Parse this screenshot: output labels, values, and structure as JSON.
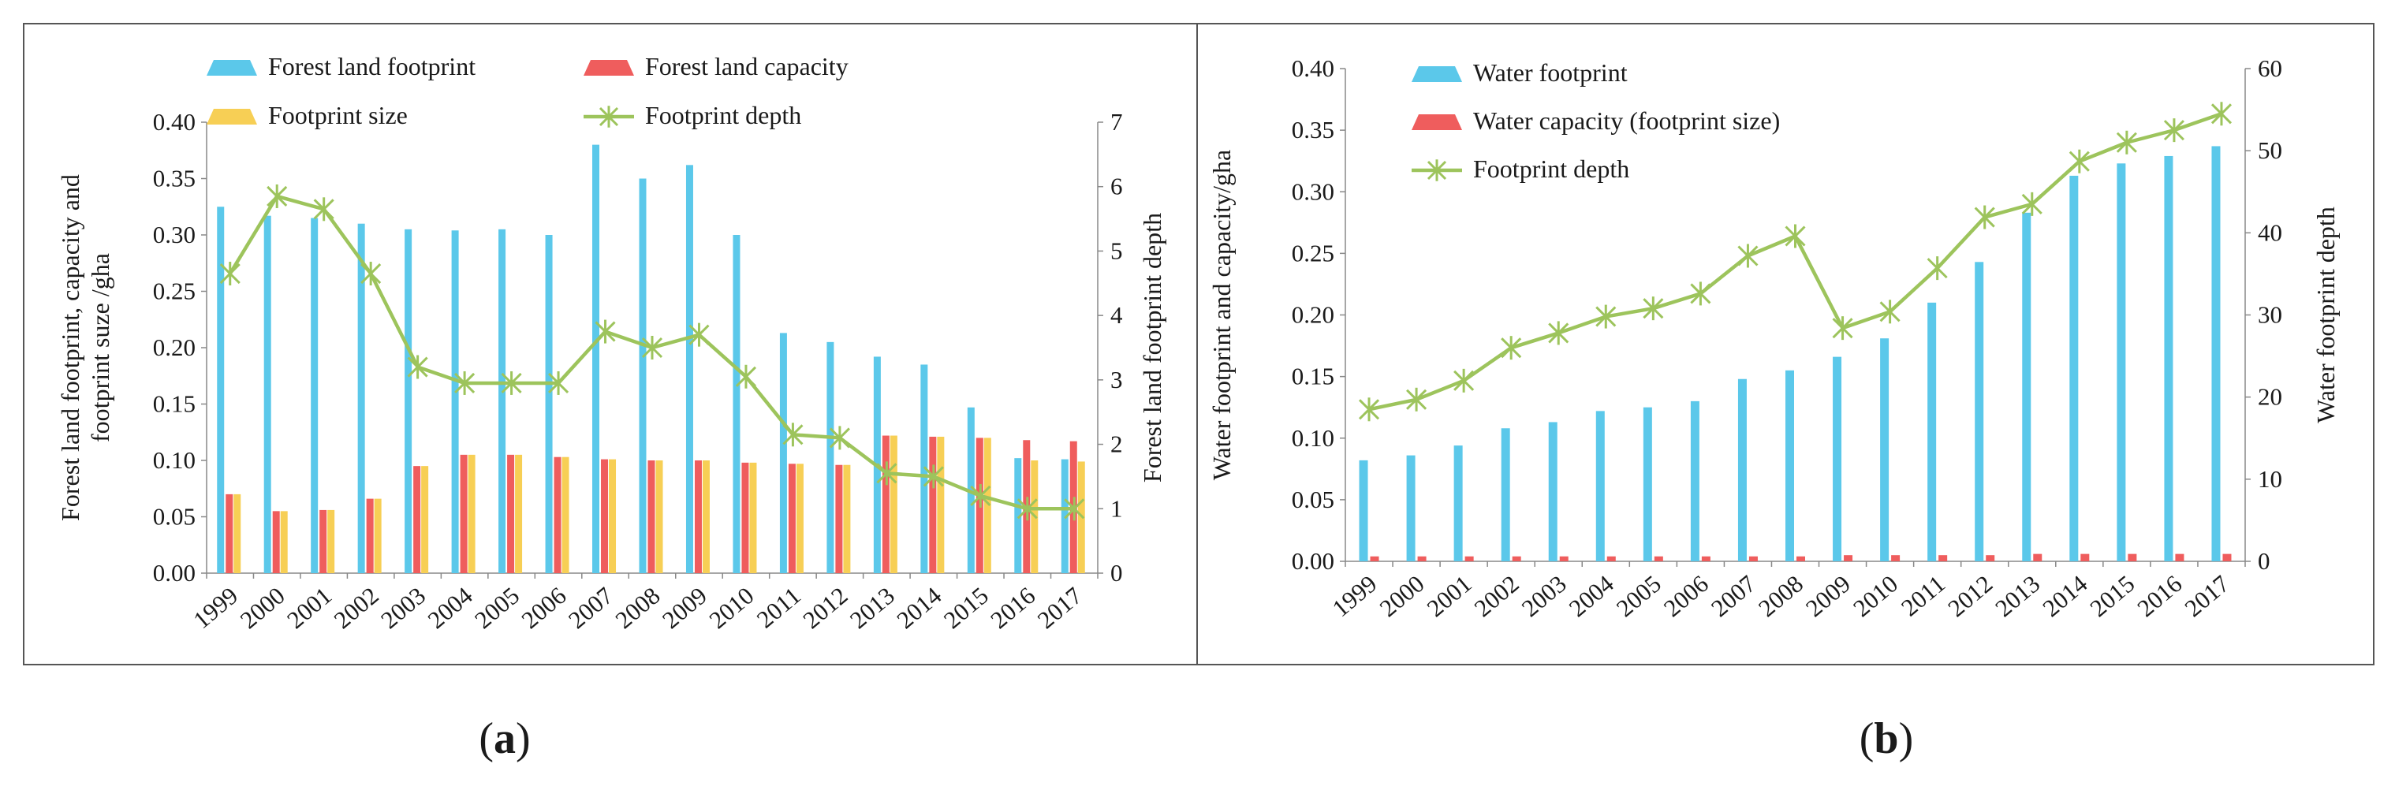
{
  "chart_data": [
    {
      "id": "a",
      "type": "bar",
      "panel_label": {
        "open": "(",
        "letter": "a",
        "close": ")"
      },
      "categories": [
        "1999",
        "2000",
        "2001",
        "2002",
        "2003",
        "2004",
        "2005",
        "2006",
        "2007",
        "2008",
        "2009",
        "2010",
        "2011",
        "2012",
        "2013",
        "2014",
        "2015",
        "2016",
        "2017"
      ],
      "series": [
        {
          "name": "Forest land footprint",
          "kind": "bar",
          "axis": "left",
          "color": "#5bc8ea",
          "values": [
            0.325,
            0.317,
            0.315,
            0.31,
            0.305,
            0.304,
            0.305,
            0.3,
            0.38,
            0.35,
            0.362,
            0.3,
            0.213,
            0.205,
            0.192,
            0.185,
            0.147,
            0.102,
            0.101
          ]
        },
        {
          "name": "Forest land capacity",
          "kind": "bar",
          "axis": "left",
          "color": "#ef5d5d",
          "values": [
            0.07,
            0.055,
            0.056,
            0.066,
            0.095,
            0.105,
            0.105,
            0.103,
            0.101,
            0.1,
            0.1,
            0.098,
            0.097,
            0.096,
            0.122,
            0.121,
            0.12,
            0.118,
            0.117
          ]
        },
        {
          "name": "Footprint size",
          "kind": "bar",
          "axis": "left",
          "color": "#f7cf55",
          "values": [
            0.07,
            0.055,
            0.056,
            0.066,
            0.095,
            0.105,
            0.105,
            0.103,
            0.101,
            0.1,
            0.1,
            0.098,
            0.097,
            0.096,
            0.122,
            0.121,
            0.12,
            0.1,
            0.099
          ]
        },
        {
          "name": "Footprint depth",
          "kind": "line",
          "axis": "right",
          "color": "#9dc45c",
          "values": [
            4.65,
            5.85,
            5.65,
            4.65,
            3.2,
            2.95,
            2.95,
            2.95,
            3.75,
            3.5,
            3.7,
            3.05,
            2.15,
            2.1,
            1.55,
            1.5,
            1.2,
            1.0,
            1.0
          ]
        }
      ],
      "ylabel": "Forest land footprint, capacity and footprint suze /gha",
      "ylabel_lines": [
        "Forest land footprint, capacity and",
        "footprint suze /gha"
      ],
      "ylim": [
        0,
        0.4
      ],
      "yticks": [
        "0.00",
        "0.05",
        "0.10",
        "0.15",
        "0.20",
        "0.25",
        "0.30",
        "0.35",
        "0.40"
      ],
      "y2label": "Forest land footprint depth",
      "y2lim": [
        0,
        7
      ],
      "y2ticks": [
        "0",
        "1",
        "2",
        "3",
        "4",
        "5",
        "6",
        "7"
      ],
      "legend": "top, two columns"
    },
    {
      "id": "b",
      "type": "bar",
      "panel_label": {
        "open": "(",
        "letter": "b",
        "close": ")"
      },
      "categories": [
        "1999",
        "2000",
        "2001",
        "2002",
        "2003",
        "2004",
        "2005",
        "2006",
        "2007",
        "2008",
        "2009",
        "2010",
        "2011",
        "2012",
        "2013",
        "2014",
        "2015",
        "2016",
        "2017"
      ],
      "series": [
        {
          "name": "Water footprint",
          "kind": "bar",
          "axis": "left",
          "color": "#5bc8ea",
          "values": [
            0.082,
            0.086,
            0.094,
            0.108,
            0.113,
            0.122,
            0.125,
            0.13,
            0.148,
            0.155,
            0.166,
            0.181,
            0.21,
            0.243,
            0.283,
            0.313,
            0.323,
            0.329,
            0.337
          ]
        },
        {
          "name": "Water capacity (footprint size)",
          "kind": "bar",
          "axis": "left",
          "color": "#ef5d5d",
          "values": [
            0.004,
            0.004,
            0.004,
            0.004,
            0.004,
            0.004,
            0.004,
            0.004,
            0.004,
            0.004,
            0.005,
            0.005,
            0.005,
            0.005,
            0.006,
            0.006,
            0.006,
            0.006,
            0.006
          ]
        },
        {
          "name": "Footprint depth",
          "kind": "line",
          "axis": "right",
          "color": "#9dc45c",
          "values": [
            18.5,
            19.7,
            22.0,
            26.0,
            27.8,
            29.8,
            30.8,
            32.6,
            37.2,
            39.6,
            28.4,
            30.4,
            35.7,
            41.9,
            43.5,
            48.7,
            51.0,
            52.5,
            54.5
          ]
        }
      ],
      "ylabel": "Water footprint and capacity/gha",
      "ylim": [
        0,
        0.4
      ],
      "yticks": [
        "0.00",
        "0.05",
        "0.10",
        "0.15",
        "0.20",
        "0.25",
        "0.30",
        "0.35",
        "0.40"
      ],
      "y2label": "Water footprint depth",
      "y2lim": [
        0,
        60
      ],
      "y2ticks": [
        "0",
        "10",
        "20",
        "30",
        "40",
        "50",
        "60"
      ],
      "legend": "top-left, one column"
    }
  ]
}
